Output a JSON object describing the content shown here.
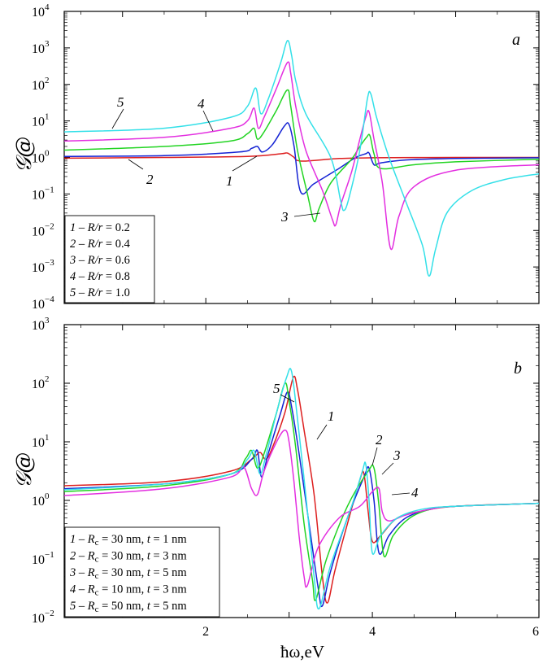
{
  "chart_data": [
    {
      "panel": "a",
      "type": "line",
      "ylabel": "𝒢@",
      "xlim": [
        0.3,
        6.0
      ],
      "ylim_exp": [
        -4,
        4
      ],
      "yscale": "log",
      "yticks": [
        "10",
        "10",
        "10",
        "10",
        "10",
        "10",
        "10",
        "10",
        "10"
      ],
      "yticks_exp": [
        "−4",
        "−3",
        "−2",
        "−1",
        "0",
        "1",
        "2",
        "3",
        "4"
      ],
      "legend": [
        {
          "num": "1",
          "sep": " – ",
          "var": "R/r",
          "eq": " = 0.2"
        },
        {
          "num": "2",
          "sep": " – ",
          "var": "R/r",
          "eq": " = 0.4"
        },
        {
          "num": "3",
          "sep": " – ",
          "var": "R/r",
          "eq": " = 0.6"
        },
        {
          "num": "4",
          "sep": " – ",
          "var": "R/r",
          "eq": " = 0.8"
        },
        {
          "num": "5",
          "sep": " – ",
          "var": "R/r",
          "eq": " = 1.0"
        }
      ],
      "series": [
        {
          "label": "1",
          "color": "#dd1f1f",
          "x": [
            0.3,
            1.5,
            2.5,
            2.9,
            2.98,
            3.05,
            3.15,
            3.6,
            4.0,
            5.0,
            6.0
          ],
          "log10_y": [
            -0.02,
            0,
            0.03,
            0.1,
            0.12,
            0.02,
            -0.1,
            -0.03,
            -0.01,
            0,
            0
          ]
        },
        {
          "label": "2",
          "color": "#1523d4",
          "x": [
            0.3,
            1.5,
            2.4,
            2.55,
            2.62,
            2.68,
            2.8,
            2.94,
            3.0,
            3.06,
            3.14,
            3.3,
            3.6,
            3.8,
            3.92,
            3.96,
            4.02,
            4.1,
            4.4,
            5.0,
            6.0
          ],
          "log10_y": [
            0.03,
            0.05,
            0.15,
            0.25,
            0.3,
            0.15,
            0.35,
            0.85,
            0.9,
            0.3,
            -0.95,
            -0.72,
            -0.3,
            0,
            0.1,
            0.12,
            -0.2,
            -0.15,
            -0.07,
            -0.03,
            -0.01
          ]
        },
        {
          "label": "3",
          "color": "#22d422",
          "x": [
            0.3,
            1.5,
            2.3,
            2.5,
            2.58,
            2.62,
            2.7,
            2.85,
            2.98,
            3.02,
            3.1,
            3.22,
            3.3,
            3.36,
            3.5,
            3.75,
            3.85,
            3.93,
            3.97,
            4.02,
            4.1,
            4.5,
            5.0,
            6.0
          ],
          "log10_y": [
            0.2,
            0.3,
            0.45,
            0.65,
            0.8,
            0.5,
            0.7,
            1.3,
            1.85,
            1.4,
            0.2,
            -1,
            -1.75,
            -1.4,
            -0.7,
            -0.05,
            0.3,
            0.55,
            0.6,
            0.1,
            -0.3,
            -0.2,
            -0.12,
            -0.05
          ]
        },
        {
          "label": "4",
          "color": "#e32fe0",
          "x": [
            0.3,
            1.5,
            2.3,
            2.5,
            2.58,
            2.63,
            2.7,
            2.85,
            2.98,
            3.02,
            3.08,
            3.2,
            3.4,
            3.52,
            3.56,
            3.62,
            3.75,
            3.85,
            3.92,
            3.96,
            4.02,
            4.12,
            4.22,
            4.32,
            4.5,
            5.0,
            6.0
          ],
          "log10_y": [
            0.45,
            0.55,
            0.8,
            1.0,
            1.35,
            0.8,
            1.1,
            1.9,
            2.6,
            2.3,
            1.4,
            0.2,
            -0.9,
            -1.7,
            -1.85,
            -1.3,
            -0.4,
            0.5,
            1.1,
            1.25,
            0.5,
            -0.7,
            -2.5,
            -1.6,
            -0.8,
            -0.35,
            -0.2
          ]
        },
        {
          "label": "5",
          "color": "#33e0e8",
          "x": [
            0.3,
            1.5,
            2.3,
            2.5,
            2.6,
            2.66,
            2.75,
            2.9,
            2.98,
            3.03,
            3.08,
            3.2,
            3.5,
            3.62,
            3.66,
            3.72,
            3.85,
            3.94,
            3.98,
            4.05,
            4.2,
            4.4,
            4.6,
            4.68,
            4.76,
            4.9,
            5.2,
            5.6,
            6.0
          ],
          "log10_y": [
            0.7,
            0.8,
            1.1,
            1.4,
            1.9,
            1.2,
            1.6,
            2.6,
            3.2,
            2.8,
            2.1,
            1.2,
            0,
            -1.2,
            -1.45,
            -1.1,
            0.2,
            1.6,
            1.75,
            1.1,
            0,
            -1.2,
            -2.4,
            -3.25,
            -2.5,
            -1.5,
            -0.9,
            -0.6,
            -0.45
          ]
        }
      ]
    },
    {
      "panel": "b",
      "type": "line",
      "ylabel": "𝒢@",
      "xlabel": "ħω,eV",
      "xlim": [
        0.3,
        6.0
      ],
      "xticks": [
        "2",
        "4",
        "6"
      ],
      "ylim_exp": [
        -2,
        3
      ],
      "yscale": "log",
      "yticks": [
        "10",
        "10",
        "10",
        "10",
        "10",
        "10"
      ],
      "yticks_exp": [
        "−2",
        "−1",
        "0",
        "1",
        "2",
        "3"
      ],
      "legend": [
        {
          "num": "1",
          "sep": " – ",
          "var": "R",
          "sub": "c",
          "eq": " = 30 nm, ",
          "var2": "t",
          "eq2": " = 1 nm"
        },
        {
          "num": "2",
          "sep": " – ",
          "var": "R",
          "sub": "c",
          "eq": " = 30 nm, ",
          "var2": "t",
          "eq2": " = 3 nm"
        },
        {
          "num": "3",
          "sep": " – ",
          "var": "R",
          "sub": "c",
          "eq": " = 30 nm, ",
          "var2": "t",
          "eq2": " = 5 nm"
        },
        {
          "num": "4",
          "sep": " – ",
          "var": "R",
          "sub": "c",
          "eq": " = 10 nm, ",
          "var2": "t",
          "eq2": " = 3 nm"
        },
        {
          "num": "5",
          "sep": " – ",
          "var": "R",
          "sub": "c",
          "eq": " = 50 nm, ",
          "var2": "t",
          "eq2": " = 5 nm"
        }
      ],
      "series": [
        {
          "label": "1",
          "color": "#dd1f1f",
          "x": [
            0.3,
            1.5,
            2.3,
            2.55,
            2.65,
            2.72,
            2.8,
            2.95,
            3.05,
            3.1,
            3.18,
            3.3,
            3.4,
            3.46,
            3.55,
            3.7,
            3.85,
            3.9,
            3.95,
            4.0,
            4.1,
            4.3,
            4.6,
            5.0,
            6.0
          ],
          "log10_y": [
            0.25,
            0.32,
            0.5,
            0.7,
            0.82,
            0.7,
            0.9,
            1.5,
            2.1,
            1.9,
            1.2,
            0.1,
            -1.3,
            -1.75,
            -1.2,
            -0.4,
            0.35,
            0.45,
            -0.2,
            -0.7,
            -0.6,
            -0.3,
            -0.18,
            -0.1,
            -0.05
          ]
        },
        {
          "label": "2",
          "color": "#1523d4",
          "x": [
            0.3,
            1.5,
            2.3,
            2.55,
            2.62,
            2.67,
            2.75,
            2.9,
            2.98,
            3.03,
            3.12,
            3.25,
            3.35,
            3.4,
            3.5,
            3.7,
            3.9,
            3.96,
            4.02,
            4.08,
            4.2,
            4.4,
            4.7,
            5.0,
            6.0
          ],
          "log10_y": [
            0.2,
            0.28,
            0.45,
            0.7,
            0.85,
            0.4,
            0.8,
            1.5,
            1.85,
            1.6,
            0.8,
            -0.5,
            -1.5,
            -1.8,
            -1.2,
            -0.3,
            0.4,
            0.55,
            0,
            -0.9,
            -0.6,
            -0.3,
            -0.15,
            -0.1,
            -0.05
          ]
        },
        {
          "label": "3",
          "color": "#22d422",
          "x": [
            0.3,
            1.5,
            2.3,
            2.48,
            2.55,
            2.62,
            2.7,
            2.85,
            2.95,
            3.0,
            3.08,
            3.18,
            3.28,
            3.32,
            3.45,
            3.7,
            3.95,
            4.02,
            4.08,
            4.14,
            4.25,
            4.45,
            4.7,
            5.0,
            6.0
          ],
          "log10_y": [
            0.15,
            0.25,
            0.45,
            0.72,
            0.85,
            0.55,
            0.8,
            1.5,
            2.0,
            1.7,
            0.9,
            -0.4,
            -1.35,
            -1.7,
            -1.0,
            -0.1,
            0.5,
            0.55,
            -0.1,
            -0.95,
            -0.6,
            -0.3,
            -0.15,
            -0.1,
            -0.05
          ]
        },
        {
          "label": "4",
          "color": "#e32fe0",
          "x": [
            0.3,
            1.5,
            2.3,
            2.45,
            2.55,
            2.62,
            2.7,
            2.85,
            2.95,
            3.0,
            3.06,
            3.12,
            3.18,
            3.22,
            3.35,
            3.6,
            3.85,
            4.0,
            4.08,
            4.12,
            4.2,
            4.4,
            4.7,
            5.0,
            6.0
          ],
          "log10_y": [
            0.08,
            0.2,
            0.4,
            0.58,
            0.2,
            0.1,
            0.5,
            1.0,
            1.2,
            1.0,
            0.3,
            -0.6,
            -1.3,
            -1.45,
            -0.8,
            -0.3,
            -0.1,
            0.15,
            0.2,
            -0.2,
            -0.35,
            -0.25,
            -0.15,
            -0.1,
            -0.05
          ]
        },
        {
          "label": "5",
          "color": "#33e0e8",
          "x": [
            0.3,
            1.5,
            2.3,
            2.5,
            2.58,
            2.65,
            2.72,
            2.85,
            2.97,
            3.03,
            3.1,
            3.2,
            3.3,
            3.36,
            3.5,
            3.75,
            3.88,
            3.92,
            3.96,
            4.0,
            4.1,
            4.3,
            4.6,
            5.0,
            6.0
          ],
          "log10_y": [
            0.18,
            0.28,
            0.45,
            0.7,
            0.85,
            0.45,
            0.75,
            1.5,
            2.1,
            2.2,
            1.4,
            0.1,
            -1.3,
            -1.85,
            -1.1,
            -0.1,
            0.5,
            0.62,
            0,
            -0.9,
            -0.6,
            -0.3,
            -0.15,
            -0.1,
            -0.05
          ]
        }
      ]
    }
  ],
  "annotations": {
    "panel_a_letter": "a",
    "panel_b_letter": "b"
  }
}
